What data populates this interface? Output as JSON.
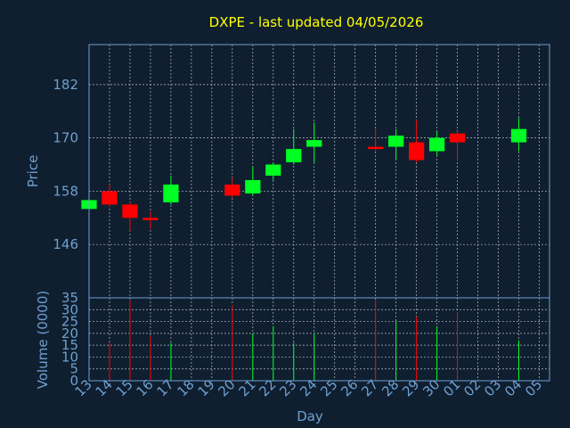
{
  "chart_data": {
    "type": "candlestick",
    "title": "DXPE - last updated 04/05/2026",
    "xlabel": "Day",
    "price_panel": {
      "ylabel": "Price",
      "yticks": [
        146,
        158,
        170,
        182
      ],
      "ylim": [
        134,
        191
      ]
    },
    "volume_panel": {
      "ylabel": "Volume (0000)",
      "yticks": [
        0,
        5,
        10,
        15,
        20,
        25,
        30,
        35
      ],
      "ylim": [
        0,
        35
      ]
    },
    "x_tick_labels": [
      "13",
      "14",
      "15",
      "16",
      "17",
      "18",
      "19",
      "20",
      "21",
      "22",
      "23",
      "24",
      "25",
      "26",
      "27",
      "28",
      "29",
      "30",
      "01",
      "02",
      "03",
      "04",
      "05"
    ],
    "candles": [
      {
        "day": "13",
        "open": 154.0,
        "close": 156.0,
        "high": 156.5,
        "low": 153.5,
        "volume": null
      },
      {
        "day": "14",
        "open": 158.0,
        "close": 155.0,
        "high": 159.5,
        "low": 154.5,
        "volume": 16
      },
      {
        "day": "15",
        "open": 155.0,
        "close": 152.0,
        "high": 155.5,
        "low": 149.0,
        "volume": 34
      },
      {
        "day": "16",
        "open": 152.0,
        "close": 151.5,
        "high": 153.5,
        "low": 149.5,
        "volume": 19
      },
      {
        "day": "17",
        "open": 155.5,
        "close": 159.5,
        "high": 161.5,
        "low": 155.0,
        "volume": 16
      },
      {
        "day": "20",
        "open": 159.5,
        "close": 157.0,
        "high": 161.0,
        "low": 156.5,
        "volume": 32
      },
      {
        "day": "21",
        "open": 157.5,
        "close": 160.5,
        "high": 163.5,
        "low": 157.0,
        "volume": 20
      },
      {
        "day": "22",
        "open": 161.5,
        "close": 164.0,
        "high": 164.5,
        "low": 160.5,
        "volume": 23
      },
      {
        "day": "23",
        "open": 164.5,
        "close": 167.5,
        "high": 172.0,
        "low": 164.0,
        "volume": 16
      },
      {
        "day": "24",
        "open": 168.0,
        "close": 169.5,
        "high": 173.5,
        "low": 164.5,
        "volume": 20
      },
      {
        "day": "27",
        "open": 168.0,
        "close": 167.5,
        "high": 172.0,
        "low": 167.0,
        "volume": 34
      },
      {
        "day": "28",
        "open": 168.0,
        "close": 170.5,
        "high": 172.0,
        "low": 165.0,
        "volume": 25
      },
      {
        "day": "29",
        "open": 169.0,
        "close": 165.0,
        "high": 174.0,
        "low": 164.5,
        "volume": 27
      },
      {
        "day": "30",
        "open": 167.0,
        "close": 170.0,
        "high": 171.5,
        "low": 166.0,
        "volume": 23
      },
      {
        "day": "01",
        "open": 171.0,
        "close": 169.0,
        "high": 171.5,
        "low": 165.0,
        "volume": 29
      },
      {
        "day": "04",
        "open": 169.0,
        "close": 172.0,
        "high": 174.5,
        "low": 167.0,
        "volume": 17
      }
    ],
    "colors": {
      "background": "#0f1f30",
      "up": "#00ff22",
      "down": "#ff0000",
      "grid": "#b4bec8",
      "frame": "#6f9fcf",
      "title": "#ffff00",
      "axis_text": "#6f9fcf"
    },
    "grid": true
  }
}
